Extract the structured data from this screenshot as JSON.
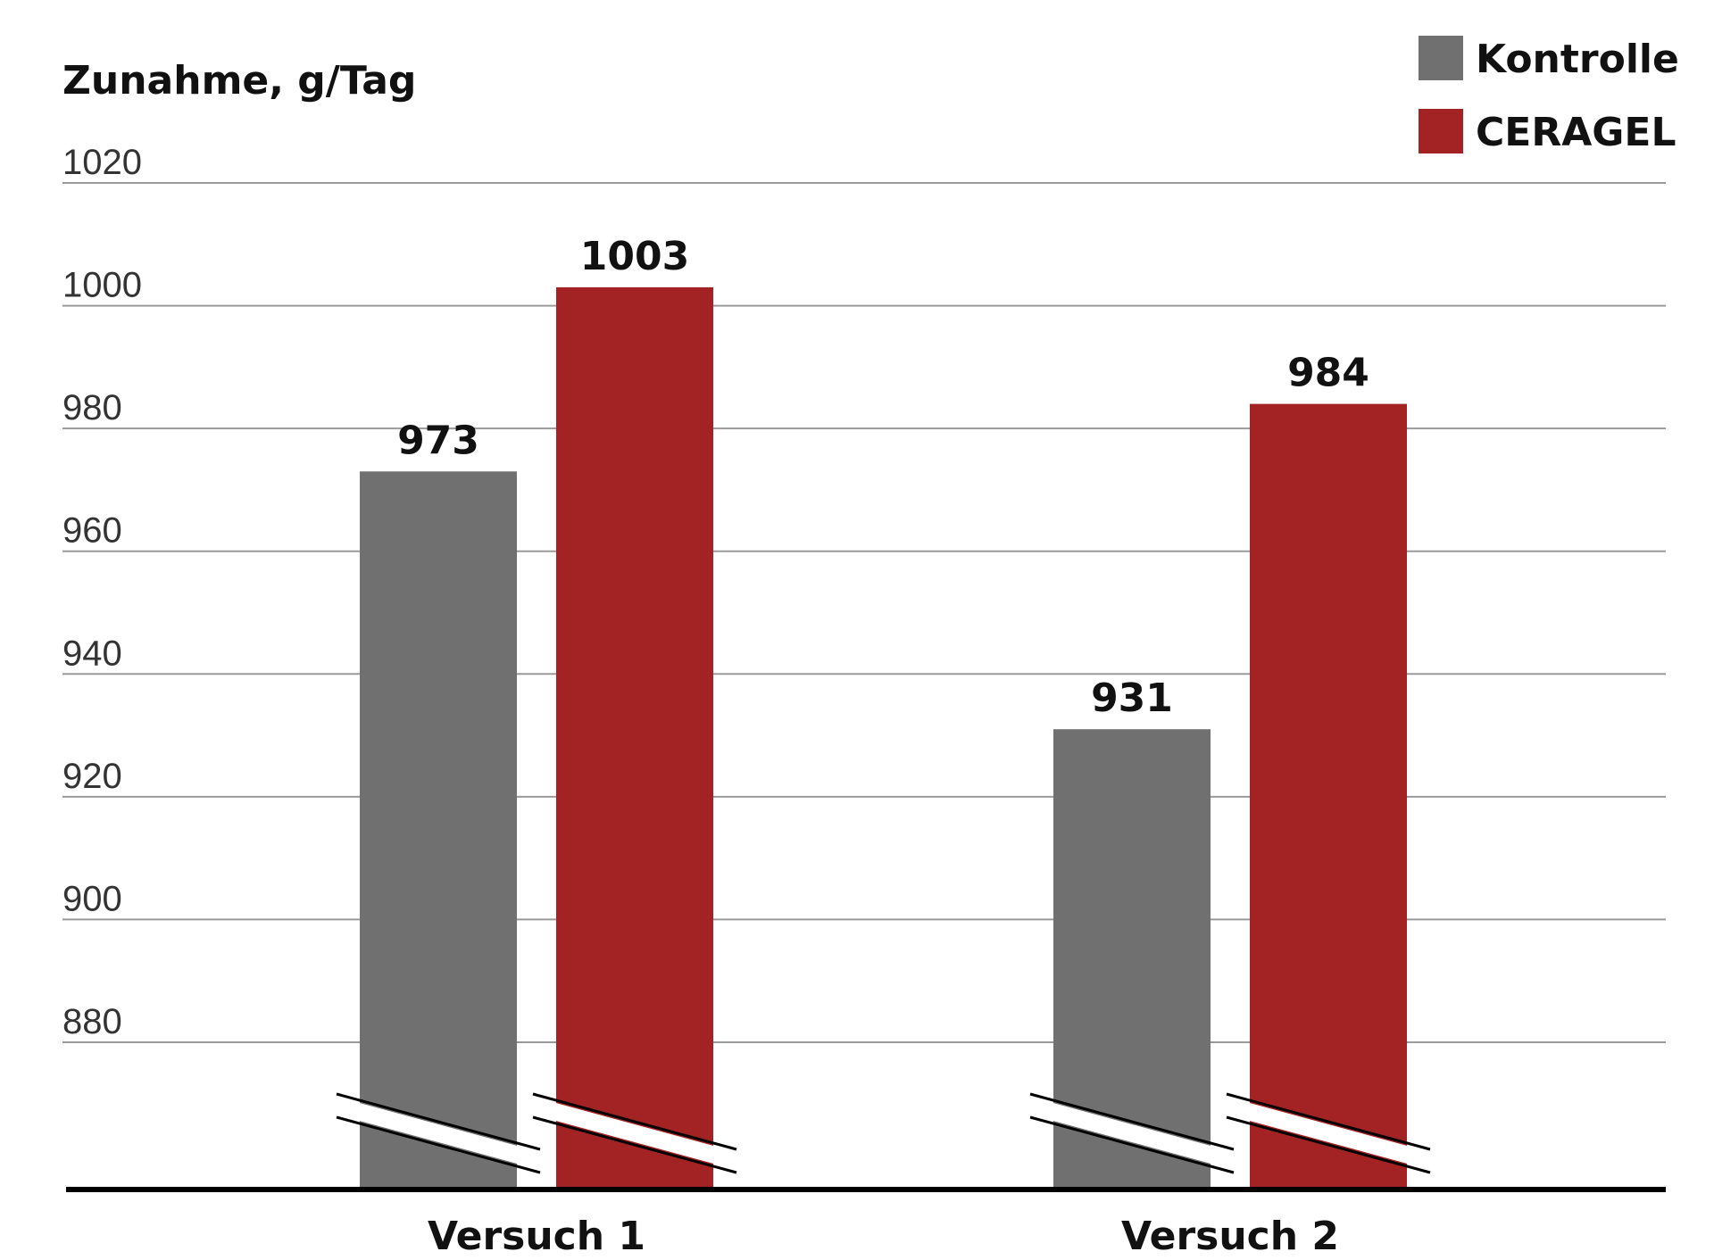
{
  "chart_data": {
    "type": "bar",
    "ylabel": "Zunahme, g/Tag",
    "categories": [
      "Versuch 1",
      "Versuch 2"
    ],
    "series": [
      {
        "name": "Kontrolle",
        "color": "#707070",
        "values": [
          973,
          931
        ],
        "labels": [
          "973",
          "931"
        ]
      },
      {
        "name": "CERAGEL",
        "color": "#A32324",
        "values": [
          1003,
          984
        ],
        "labels": [
          "1003",
          "984"
        ]
      }
    ],
    "ylim": [
      880,
      1020
    ],
    "yticks": [
      1020,
      1000,
      980,
      960,
      940,
      920,
      900,
      880
    ],
    "axis_break": true,
    "grid": true,
    "legend": "top-right"
  }
}
